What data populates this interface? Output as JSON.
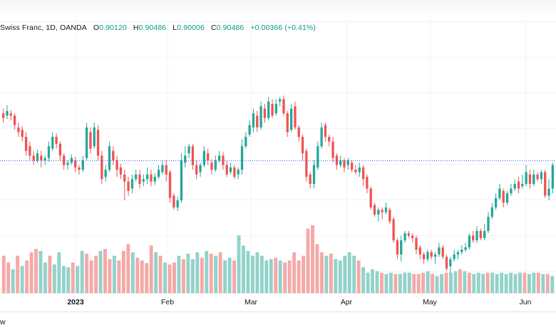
{
  "legend": {
    "symbol": "Swiss Franc, 1D, OANDA",
    "open_label": "O",
    "open": "0.90120",
    "high_label": "H",
    "high": "0.90486",
    "low_label": "L",
    "low": "0.90006",
    "close_label": "C",
    "close": "0.90486",
    "change": "+0.00366 (+0.41%)"
  },
  "x_ticks": [
    {
      "label": "2023",
      "bold": true
    },
    {
      "label": "Feb",
      "bold": false
    },
    {
      "label": "Mar",
      "bold": false
    },
    {
      "label": "Apr",
      "bold": false
    },
    {
      "label": "May",
      "bold": false
    },
    {
      "label": "Jun",
      "bold": false
    }
  ],
  "bottom_text": "w",
  "colors": {
    "up": "#26a69a",
    "down": "#ef5350",
    "up_volume": "#93d2cb",
    "down_volume": "#f5a9a7",
    "grid": "#f0f3fa",
    "price_line": "#2962ff"
  },
  "chart_data": {
    "type": "candlestick",
    "title": "Swiss Franc, 1D, OANDA",
    "ohlc": {
      "open": 0.9012,
      "high": 0.90486,
      "low": 0.90006,
      "close": 0.90486
    },
    "x_labels": [
      "2023",
      "Feb",
      "Mar",
      "Apr",
      "May",
      "Jun"
    ],
    "grid": true,
    "price_line_value": 0.5,
    "price_range": [
      0,
      1
    ],
    "candles": [
      [
        0.7,
        0.68,
        0.72,
        0.66
      ],
      [
        0.69,
        0.71,
        0.735,
        0.675
      ],
      [
        0.7,
        0.69,
        0.715,
        0.67
      ],
      [
        0.69,
        0.65,
        0.7,
        0.63
      ],
      [
        0.64,
        0.62,
        0.66,
        0.6
      ],
      [
        0.63,
        0.6,
        0.645,
        0.58
      ],
      [
        0.6,
        0.54,
        0.62,
        0.52
      ],
      [
        0.56,
        0.52,
        0.58,
        0.5
      ],
      [
        0.52,
        0.5,
        0.54,
        0.48
      ],
      [
        0.5,
        0.53,
        0.545,
        0.49
      ],
      [
        0.52,
        0.5,
        0.54,
        0.47
      ],
      [
        0.5,
        0.51,
        0.52,
        0.48
      ],
      [
        0.51,
        0.56,
        0.58,
        0.495
      ],
      [
        0.55,
        0.6,
        0.62,
        0.54
      ],
      [
        0.6,
        0.57,
        0.615,
        0.55
      ],
      [
        0.57,
        0.52,
        0.58,
        0.5
      ],
      [
        0.52,
        0.48,
        0.53,
        0.46
      ],
      [
        0.48,
        0.49,
        0.5,
        0.46
      ],
      [
        0.49,
        0.51,
        0.525,
        0.48
      ],
      [
        0.5,
        0.47,
        0.515,
        0.45
      ],
      [
        0.47,
        0.46,
        0.48,
        0.44
      ],
      [
        0.46,
        0.5,
        0.52,
        0.45
      ],
      [
        0.51,
        0.64,
        0.66,
        0.5
      ],
      [
        0.62,
        0.55,
        0.64,
        0.53
      ],
      [
        0.56,
        0.64,
        0.66,
        0.55
      ],
      [
        0.63,
        0.52,
        0.65,
        0.5
      ],
      [
        0.52,
        0.42,
        0.54,
        0.4
      ],
      [
        0.43,
        0.46,
        0.48,
        0.41
      ],
      [
        0.46,
        0.56,
        0.58,
        0.45
      ],
      [
        0.54,
        0.5,
        0.56,
        0.48
      ],
      [
        0.5,
        0.46,
        0.52,
        0.43
      ],
      [
        0.47,
        0.44,
        0.485,
        0.42
      ],
      [
        0.44,
        0.41,
        0.46,
        0.33
      ],
      [
        0.41,
        0.37,
        0.43,
        0.35
      ],
      [
        0.38,
        0.42,
        0.44,
        0.36
      ],
      [
        0.42,
        0.44,
        0.46,
        0.41
      ],
      [
        0.44,
        0.4,
        0.46,
        0.38
      ],
      [
        0.41,
        0.42,
        0.44,
        0.39
      ],
      [
        0.42,
        0.44,
        0.47,
        0.4
      ],
      [
        0.44,
        0.41,
        0.46,
        0.39
      ],
      [
        0.41,
        0.43,
        0.445,
        0.395
      ],
      [
        0.43,
        0.46,
        0.48,
        0.42
      ],
      [
        0.45,
        0.48,
        0.5,
        0.44
      ],
      [
        0.48,
        0.44,
        0.5,
        0.41
      ],
      [
        0.45,
        0.34,
        0.46,
        0.32
      ],
      [
        0.35,
        0.3,
        0.36,
        0.29
      ],
      [
        0.3,
        0.33,
        0.345,
        0.285
      ],
      [
        0.33,
        0.5,
        0.53,
        0.32
      ],
      [
        0.49,
        0.52,
        0.56,
        0.47
      ],
      [
        0.53,
        0.56,
        0.57,
        0.51
      ],
      [
        0.56,
        0.48,
        0.57,
        0.46
      ],
      [
        0.48,
        0.44,
        0.5,
        0.42
      ],
      [
        0.45,
        0.48,
        0.49,
        0.43
      ],
      [
        0.48,
        0.54,
        0.56,
        0.47
      ],
      [
        0.53,
        0.5,
        0.55,
        0.48
      ],
      [
        0.49,
        0.46,
        0.505,
        0.44
      ],
      [
        0.46,
        0.5,
        0.52,
        0.45
      ],
      [
        0.5,
        0.52,
        0.54,
        0.49
      ],
      [
        0.52,
        0.48,
        0.535,
        0.46
      ],
      [
        0.48,
        0.44,
        0.5,
        0.43
      ],
      [
        0.45,
        0.47,
        0.49,
        0.44
      ],
      [
        0.47,
        0.43,
        0.48,
        0.42
      ],
      [
        0.44,
        0.46,
        0.47,
        0.42
      ],
      [
        0.46,
        0.56,
        0.59,
        0.44
      ],
      [
        0.56,
        0.6,
        0.62,
        0.55
      ],
      [
        0.61,
        0.65,
        0.67,
        0.6
      ],
      [
        0.64,
        0.7,
        0.72,
        0.62
      ],
      [
        0.69,
        0.64,
        0.71,
        0.62
      ],
      [
        0.64,
        0.73,
        0.75,
        0.63
      ],
      [
        0.72,
        0.68,
        0.74,
        0.66
      ],
      [
        0.68,
        0.75,
        0.77,
        0.67
      ],
      [
        0.74,
        0.69,
        0.76,
        0.68
      ],
      [
        0.7,
        0.74,
        0.76,
        0.69
      ],
      [
        0.75,
        0.76,
        0.77,
        0.73
      ],
      [
        0.76,
        0.7,
        0.775,
        0.69
      ],
      [
        0.7,
        0.62,
        0.71,
        0.6
      ],
      [
        0.63,
        0.72,
        0.74,
        0.62
      ],
      [
        0.73,
        0.64,
        0.75,
        0.63
      ],
      [
        0.64,
        0.6,
        0.65,
        0.58
      ],
      [
        0.6,
        0.53,
        0.61,
        0.5
      ],
      [
        0.54,
        0.43,
        0.55,
        0.41
      ],
      [
        0.44,
        0.4,
        0.45,
        0.38
      ],
      [
        0.4,
        0.48,
        0.5,
        0.38
      ],
      [
        0.47,
        0.56,
        0.58,
        0.46
      ],
      [
        0.56,
        0.64,
        0.66,
        0.55
      ],
      [
        0.65,
        0.6,
        0.66,
        0.58
      ],
      [
        0.6,
        0.58,
        0.61,
        0.56
      ],
      [
        0.58,
        0.51,
        0.6,
        0.49
      ],
      [
        0.52,
        0.48,
        0.53,
        0.46
      ],
      [
        0.48,
        0.5,
        0.52,
        0.47
      ],
      [
        0.5,
        0.47,
        0.51,
        0.45
      ],
      [
        0.48,
        0.5,
        0.51,
        0.46
      ],
      [
        0.49,
        0.46,
        0.5,
        0.45
      ],
      [
        0.46,
        0.45,
        0.48,
        0.44
      ],
      [
        0.45,
        0.47,
        0.49,
        0.43
      ],
      [
        0.47,
        0.42,
        0.48,
        0.39
      ],
      [
        0.43,
        0.38,
        0.44,
        0.36
      ],
      [
        0.38,
        0.3,
        0.39,
        0.29
      ],
      [
        0.31,
        0.27,
        0.32,
        0.26
      ],
      [
        0.27,
        0.29,
        0.3,
        0.24
      ],
      [
        0.29,
        0.28,
        0.3,
        0.25
      ],
      [
        0.28,
        0.3,
        0.32,
        0.27
      ],
      [
        0.29,
        0.24,
        0.3,
        0.23
      ],
      [
        0.25,
        0.16,
        0.26,
        0.15
      ],
      [
        0.16,
        0.1,
        0.17,
        0.08
      ],
      [
        0.1,
        0.16,
        0.18,
        0.07
      ],
      [
        0.16,
        0.19,
        0.2,
        0.15
      ],
      [
        0.19,
        0.18,
        0.2,
        0.17
      ],
      [
        0.18,
        0.17,
        0.19,
        0.15
      ],
      [
        0.17,
        0.12,
        0.18,
        0.1
      ],
      [
        0.13,
        0.1,
        0.14,
        0.08
      ],
      [
        0.1,
        0.08,
        0.11,
        0.06
      ],
      [
        0.08,
        0.11,
        0.12,
        0.07
      ],
      [
        0.11,
        0.09,
        0.12,
        0.08
      ],
      [
        0.09,
        0.1,
        0.11,
        0.06
      ],
      [
        0.1,
        0.13,
        0.15,
        0.09
      ],
      [
        0.13,
        0.09,
        0.14,
        0.08
      ],
      [
        0.09,
        0.04,
        0.1,
        0.03
      ],
      [
        0.05,
        0.08,
        0.09,
        0.02
      ],
      [
        0.08,
        0.1,
        0.12,
        0.07
      ],
      [
        0.1,
        0.11,
        0.12,
        0.08
      ],
      [
        0.11,
        0.12,
        0.14,
        0.1
      ],
      [
        0.12,
        0.13,
        0.15,
        0.11
      ],
      [
        0.13,
        0.18,
        0.19,
        0.12
      ],
      [
        0.18,
        0.16,
        0.2,
        0.15
      ],
      [
        0.16,
        0.2,
        0.22,
        0.15
      ],
      [
        0.2,
        0.17,
        0.21,
        0.16
      ],
      [
        0.17,
        0.2,
        0.23,
        0.16
      ],
      [
        0.2,
        0.26,
        0.28,
        0.19
      ],
      [
        0.26,
        0.3,
        0.32,
        0.25
      ],
      [
        0.3,
        0.34,
        0.36,
        0.29
      ],
      [
        0.34,
        0.38,
        0.4,
        0.33
      ],
      [
        0.37,
        0.32,
        0.38,
        0.3
      ],
      [
        0.32,
        0.36,
        0.37,
        0.31
      ],
      [
        0.36,
        0.38,
        0.4,
        0.35
      ],
      [
        0.38,
        0.4,
        0.42,
        0.37
      ],
      [
        0.41,
        0.38,
        0.43,
        0.36
      ],
      [
        0.39,
        0.4,
        0.44,
        0.38
      ],
      [
        0.4,
        0.45,
        0.48,
        0.39
      ],
      [
        0.44,
        0.4,
        0.46,
        0.38
      ],
      [
        0.4,
        0.44,
        0.46,
        0.39
      ],
      [
        0.44,
        0.42,
        0.45,
        0.41
      ],
      [
        0.42,
        0.45,
        0.46,
        0.4
      ],
      [
        0.45,
        0.35,
        0.46,
        0.34
      ],
      [
        0.35,
        0.38,
        0.42,
        0.33
      ],
      [
        0.38,
        0.48,
        0.49,
        0.36
      ]
    ],
    "volume_max": 1.0,
    "volumes": [
      [
        0.55,
        0
      ],
      [
        0.45,
        0
      ],
      [
        0.35,
        1
      ],
      [
        0.55,
        0
      ],
      [
        0.4,
        1
      ],
      [
        0.48,
        0
      ],
      [
        0.6,
        0
      ],
      [
        0.65,
        0
      ],
      [
        0.62,
        1
      ],
      [
        0.45,
        1
      ],
      [
        0.55,
        0
      ],
      [
        0.42,
        1
      ],
      [
        0.6,
        1
      ],
      [
        0.4,
        1
      ],
      [
        0.38,
        1
      ],
      [
        0.45,
        0
      ],
      [
        0.4,
        1
      ],
      [
        0.62,
        1
      ],
      [
        0.58,
        0
      ],
      [
        0.48,
        0
      ],
      [
        0.55,
        0
      ],
      [
        0.62,
        1
      ],
      [
        0.65,
        0
      ],
      [
        0.5,
        0
      ],
      [
        0.55,
        1
      ],
      [
        0.48,
        0
      ],
      [
        0.62,
        0
      ],
      [
        0.72,
        0
      ],
      [
        0.6,
        1
      ],
      [
        0.52,
        0
      ],
      [
        0.48,
        0
      ],
      [
        0.44,
        0
      ],
      [
        0.7,
        0
      ],
      [
        0.6,
        1
      ],
      [
        0.55,
        0
      ],
      [
        0.45,
        1
      ],
      [
        0.42,
        0
      ],
      [
        0.45,
        0
      ],
      [
        0.55,
        1
      ],
      [
        0.5,
        0
      ],
      [
        0.58,
        1
      ],
      [
        0.5,
        1
      ],
      [
        0.6,
        1
      ],
      [
        0.52,
        0
      ],
      [
        0.62,
        1
      ],
      [
        0.58,
        0
      ],
      [
        0.55,
        1
      ],
      [
        0.6,
        0
      ],
      [
        0.48,
        1
      ],
      [
        0.52,
        1
      ],
      [
        0.48,
        0
      ],
      [
        0.85,
        1
      ],
      [
        0.7,
        1
      ],
      [
        0.62,
        1
      ],
      [
        0.55,
        1
      ],
      [
        0.6,
        1
      ],
      [
        0.55,
        1
      ],
      [
        0.48,
        1
      ],
      [
        0.5,
        1
      ],
      [
        0.52,
        0
      ],
      [
        0.48,
        1
      ],
      [
        0.45,
        0
      ],
      [
        0.48,
        0
      ],
      [
        0.6,
        0
      ],
      [
        0.48,
        0
      ],
      [
        0.55,
        0
      ],
      [
        0.95,
        0
      ],
      [
        1.0,
        0
      ],
      [
        0.72,
        0
      ],
      [
        0.6,
        0
      ],
      [
        0.55,
        1
      ],
      [
        0.58,
        0
      ],
      [
        0.5,
        1
      ],
      [
        0.48,
        1
      ],
      [
        0.55,
        1
      ],
      [
        0.6,
        1
      ],
      [
        0.55,
        1
      ],
      [
        0.48,
        0
      ],
      [
        0.38,
        1
      ],
      [
        0.3,
        1
      ],
      [
        0.35,
        1
      ],
      [
        0.32,
        1
      ],
      [
        0.3,
        0
      ],
      [
        0.28,
        1
      ],
      [
        0.3,
        1
      ],
      [
        0.28,
        0
      ],
      [
        0.28,
        1
      ],
      [
        0.3,
        1
      ],
      [
        0.3,
        1
      ],
      [
        0.28,
        0
      ],
      [
        0.28,
        0
      ],
      [
        0.3,
        0
      ],
      [
        0.32,
        1
      ],
      [
        0.28,
        0
      ],
      [
        0.25,
        1
      ],
      [
        0.28,
        1
      ],
      [
        0.3,
        0
      ],
      [
        0.3,
        1
      ],
      [
        0.32,
        1
      ],
      [
        0.35,
        0
      ],
      [
        0.32,
        1
      ],
      [
        0.3,
        0
      ],
      [
        0.28,
        1
      ],
      [
        0.3,
        1
      ],
      [
        0.28,
        1
      ],
      [
        0.3,
        0
      ],
      [
        0.3,
        1
      ],
      [
        0.28,
        1
      ],
      [
        0.3,
        1
      ],
      [
        0.28,
        1
      ],
      [
        0.3,
        1
      ],
      [
        0.28,
        1
      ],
      [
        0.3,
        1
      ],
      [
        0.3,
        0
      ],
      [
        0.28,
        1
      ],
      [
        0.3,
        1
      ],
      [
        0.3,
        0
      ],
      [
        0.28,
        1
      ],
      [
        0.28,
        0
      ],
      [
        0.25,
        1
      ]
    ]
  }
}
